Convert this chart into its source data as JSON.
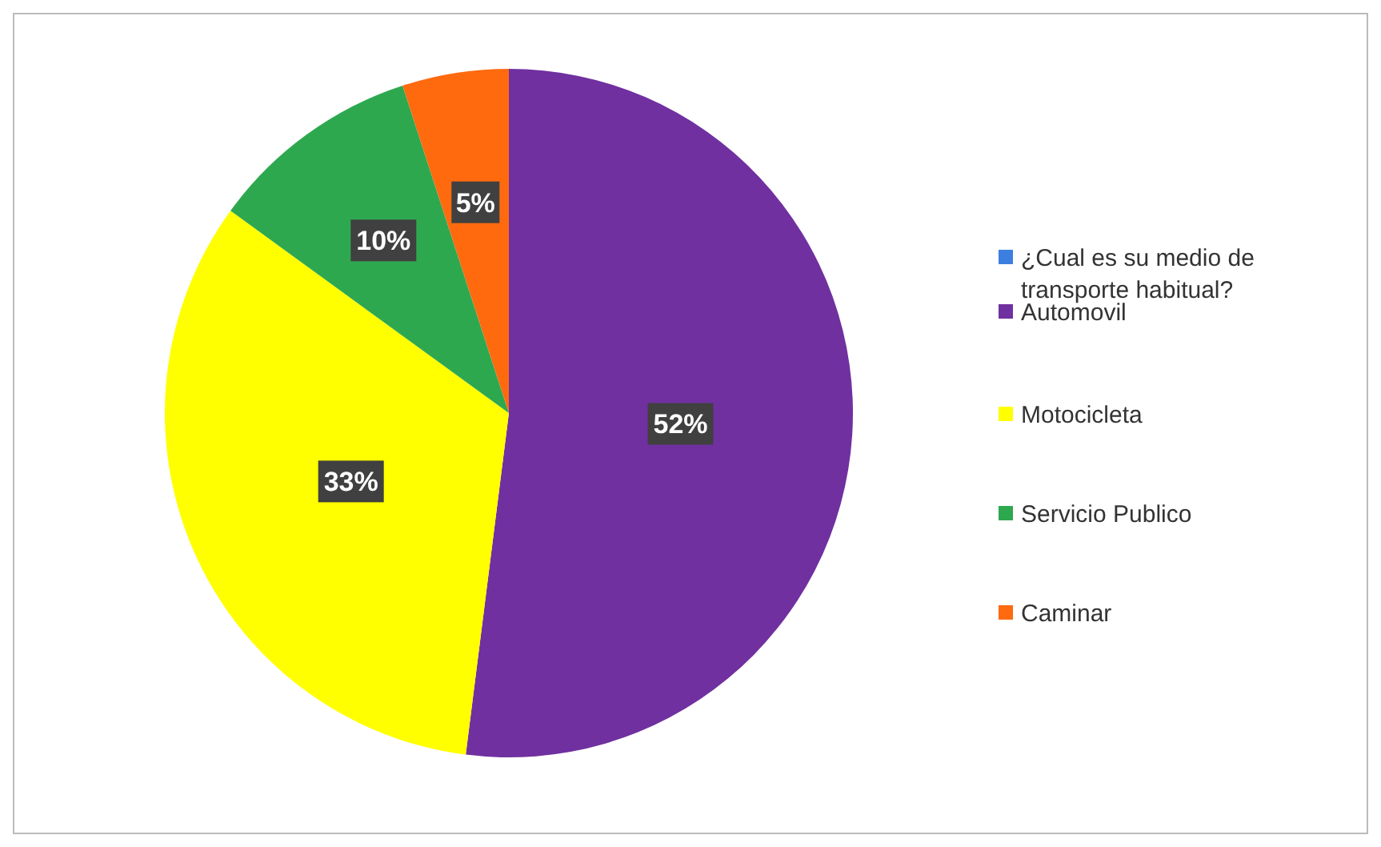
{
  "chart_data": {
    "type": "pie",
    "legend_title": "¿Cual es su medio de transporte habitual?",
    "categories": [
      "Automovil",
      "Motocicleta",
      "Servicio Publico",
      "Caminar"
    ],
    "values": [
      52,
      33,
      10,
      5
    ],
    "colors": [
      "#7030a0",
      "#ffff00",
      "#2ea84f",
      "#ff6a0f"
    ],
    "value_labels": [
      "52%",
      "33%",
      "10%",
      "5%"
    ],
    "legend": "right"
  }
}
